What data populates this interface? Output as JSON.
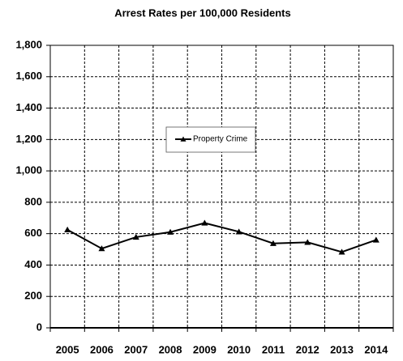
{
  "chart_data": {
    "type": "line",
    "title": "Arrest Rates per 100,000 Residents",
    "categories": [
      "2005",
      "2006",
      "2007",
      "2008",
      "2009",
      "2010",
      "2011",
      "2012",
      "2013",
      "2014"
    ],
    "series": [
      {
        "name": "Property Crime",
        "color": "#000000",
        "values": [
          625,
          505,
          578,
          610,
          668,
          612,
          538,
          545,
          483,
          560
        ]
      }
    ],
    "ylim": [
      0,
      1800
    ],
    "yticks": [
      0,
      200,
      400,
      600,
      800,
      {
        "value": 1000,
        "label": "1,000"
      },
      {
        "value": 1200,
        "label": "1,200"
      },
      {
        "value": 1400,
        "label": "1,400"
      },
      {
        "value": 1600,
        "label": "1,600"
      },
      {
        "value": 1800,
        "label": "1,800"
      }
    ],
    "grid": true
  }
}
